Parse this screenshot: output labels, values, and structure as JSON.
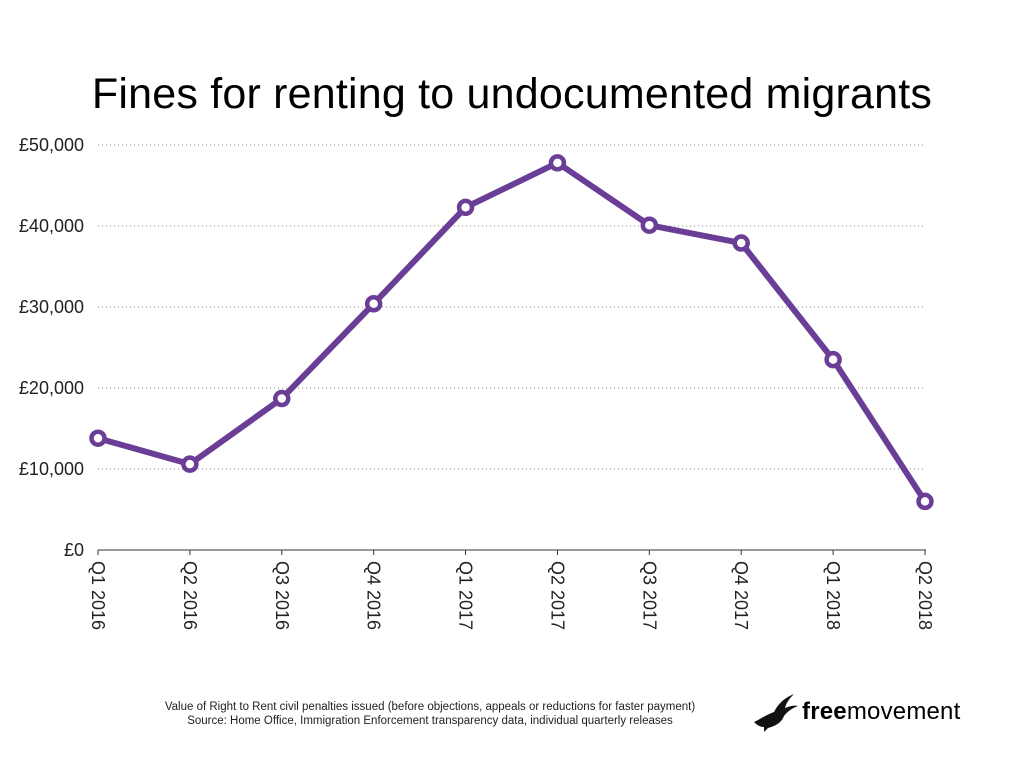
{
  "chart_data": {
    "type": "line",
    "title": "Fines for renting to undocumented migrants",
    "xlabel": "",
    "ylabel": "",
    "categories": [
      "Q1 2016",
      "Q2 2016",
      "Q3 2016",
      "Q4 2016",
      "Q1 2017",
      "Q2 2017",
      "Q3 2017",
      "Q4 2017",
      "Q1 2018",
      "Q2 2018"
    ],
    "series": [
      {
        "values": [
          13800,
          10600,
          18700,
          30400,
          42300,
          47800,
          40100,
          37900,
          23500,
          6000
        ]
      }
    ],
    "ylim": [
      0,
      50000
    ],
    "yticks": [
      0,
      10000,
      20000,
      30000,
      40000,
      50000
    ],
    "ytick_labels": [
      "£0",
      "£10,000",
      "£20,000",
      "£30,000",
      "£40,000",
      "£50,000"
    ],
    "grid": true,
    "legend": "none"
  },
  "colors": {
    "series": "#6a3d96"
  },
  "footnote": {
    "line1": "Value of Right to Rent civil penalties issued (before objections, appeals or reductions for faster payment)",
    "line2": "Source: Home Office, Immigration Enforcement transparency data, individual quarterly releases"
  },
  "logo": {
    "bold": "free",
    "rest": "movement",
    "icon": "bird-icon"
  }
}
